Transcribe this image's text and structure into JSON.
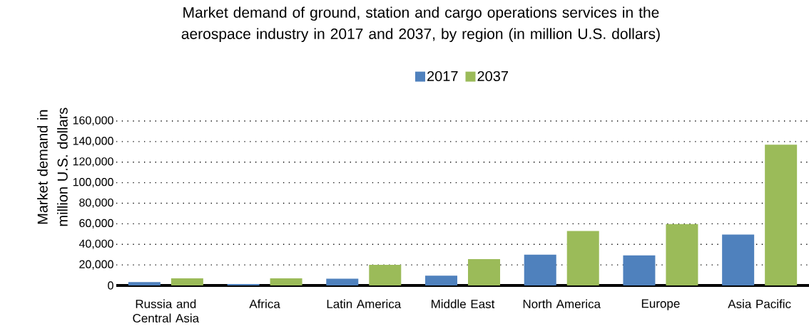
{
  "chart_data": {
    "type": "bar",
    "title": "Market demand of ground, station and cargo operations services in the aerospace industry in 2017 and 2037, by region (in million U.S. dollars)",
    "ylabel": "Market demand in million U.S. dollars",
    "categories": [
      "Russia and Central Asia",
      "Africa",
      "Latin America",
      "Middle East",
      "North America",
      "Europe",
      "Asia Pacific"
    ],
    "series": [
      {
        "name": "2017",
        "color": "#4f81bd",
        "values": [
          3300,
          1400,
          6500,
          9500,
          30000,
          29300,
          49600
        ]
      },
      {
        "name": "2037",
        "color": "#9bbb59",
        "values": [
          6900,
          6900,
          20100,
          25600,
          53000,
          59700,
          137000
        ]
      }
    ],
    "ylim": [
      0,
      160000
    ],
    "yticks": [
      {
        "value": 0,
        "label": "0"
      },
      {
        "value": 20000,
        "label": "20,000"
      },
      {
        "value": 40000,
        "label": "40,000"
      },
      {
        "value": 60000,
        "label": "60,000"
      },
      {
        "value": 80000,
        "label": "80,000"
      },
      {
        "value": 100000,
        "label": "100,000"
      },
      {
        "value": 120000,
        "label": "120,000"
      },
      {
        "value": 140000,
        "label": "140,000"
      },
      {
        "value": 160000,
        "label": "160,000"
      }
    ],
    "grid": "y",
    "legend": "top"
  }
}
